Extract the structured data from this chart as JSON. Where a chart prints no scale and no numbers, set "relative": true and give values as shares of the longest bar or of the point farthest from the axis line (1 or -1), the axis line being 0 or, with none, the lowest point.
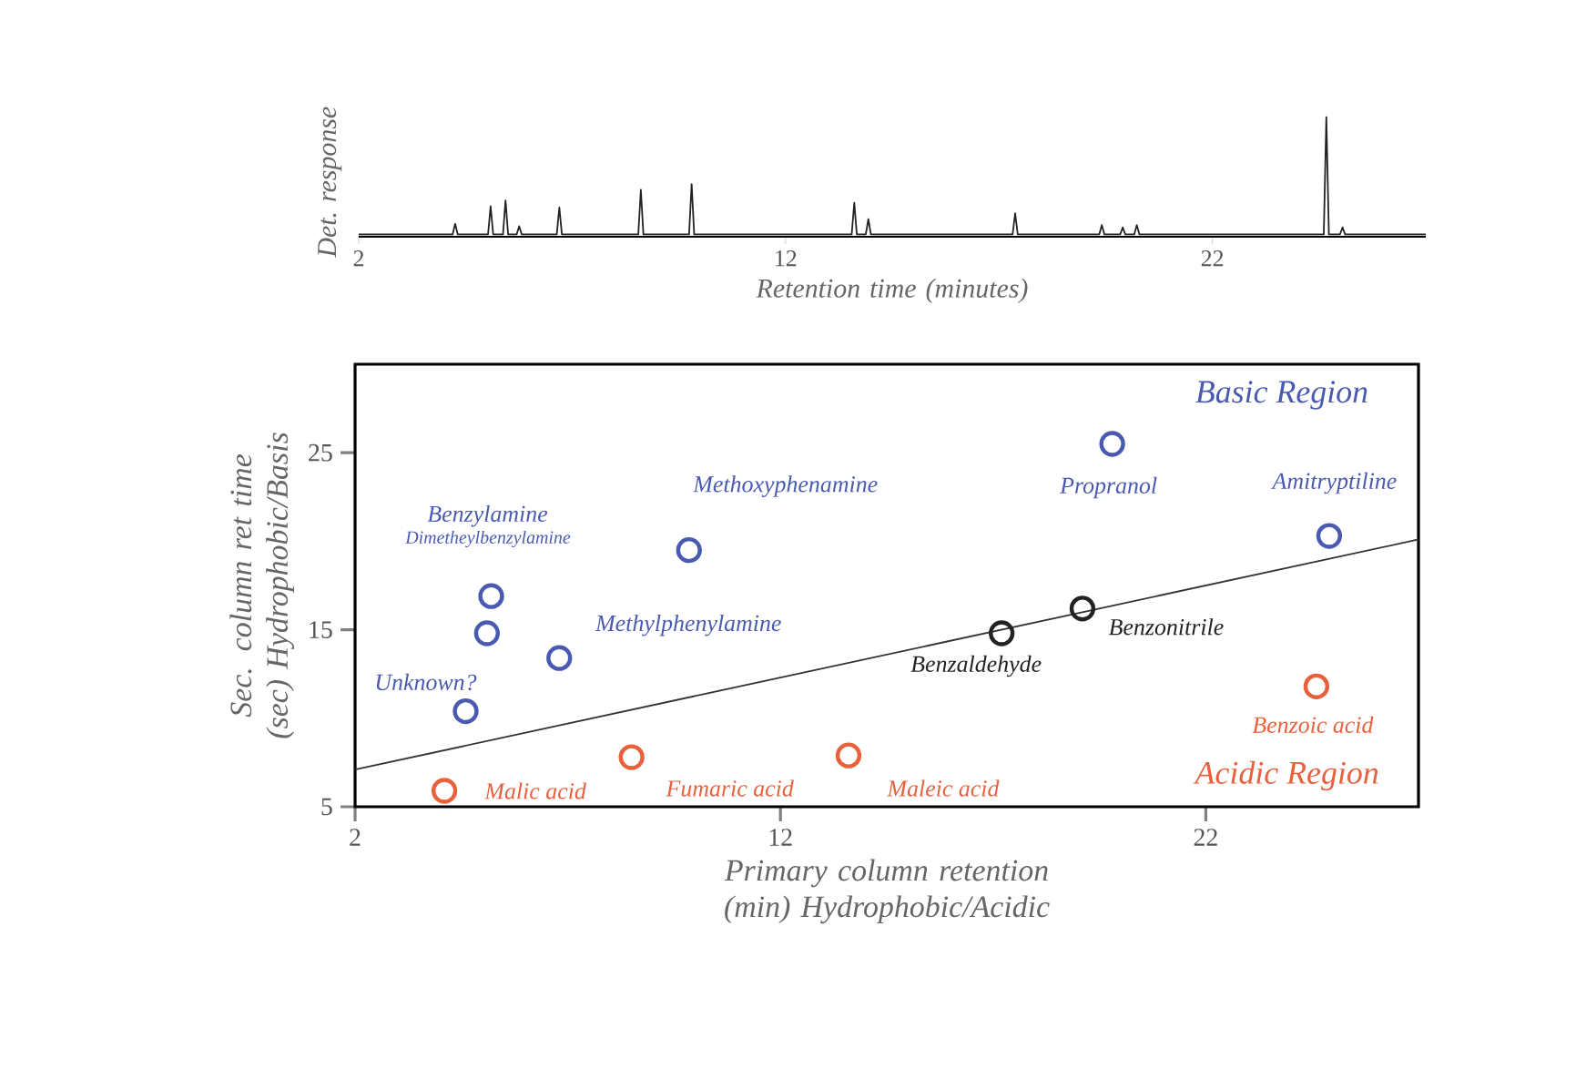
{
  "chart_data": [
    {
      "type": "line",
      "relative": true,
      "xlabel": "Retention time (minutes)",
      "ylabel": "Det. response",
      "xlim": [
        2,
        27
      ],
      "xticks": [
        2,
        12,
        22
      ],
      "tick_labels": "x",
      "series": [
        {
          "color": "#222222",
          "x": [
            2,
            4.2,
            4.26,
            4.32,
            5.03,
            5.09,
            5.15,
            5.38,
            5.44,
            5.5,
            5.7,
            5.76,
            5.82,
            6.64,
            6.7,
            6.76,
            8.55,
            8.61,
            8.67,
            9.74,
            9.8,
            9.86,
            13.55,
            13.61,
            13.67,
            13.88,
            13.94,
            14.0,
            17.32,
            17.38,
            17.44,
            19.35,
            19.41,
            19.47,
            19.84,
            19.9,
            19.96,
            20.17,
            20.23,
            20.29,
            24.61,
            24.67,
            24.73,
            24.99,
            25.05,
            25.11,
            27
          ],
          "values": [
            0,
            0,
            0.09,
            0,
            0,
            0.24,
            0,
            0,
            0.29,
            0,
            0,
            0.07,
            0,
            0,
            0.23,
            0,
            0,
            0.38,
            0,
            0,
            0.43,
            0,
            0,
            0.27,
            0,
            0,
            0.13,
            0,
            0,
            0.18,
            0,
            0,
            0.08,
            0,
            0,
            0.06,
            0,
            0,
            0.08,
            0,
            0,
            1,
            0,
            0,
            0.06,
            0,
            0
          ]
        }
      ]
    },
    {
      "type": "scatter",
      "xlabel": "Primary column retention (min) Hydrophobic/Acidic",
      "ylabel": "Sec. column ret time (sec) Hydrophobic/Basis",
      "xlim": [
        2,
        27
      ],
      "ylim": [
        5,
        30
      ],
      "xticks": [
        2,
        12,
        22
      ],
      "yticks": [
        5,
        15,
        25
      ],
      "marker": "circle",
      "series": [
        {
          "color": "#4a5ab0",
          "x": [
            5.2,
            5.1,
            4.6,
            6.8,
            9.85,
            19.8,
            24.9
          ],
          "values": [
            16.9,
            14.8,
            10.4,
            13.4,
            19.5,
            25.5,
            20.3
          ]
        },
        {
          "color": "#222222",
          "x": [
            17.2,
            19.1
          ],
          "values": [
            14.8,
            16.2
          ]
        },
        {
          "color": "#e8603c",
          "x": [
            4.1,
            8.5,
            13.6,
            24.6
          ],
          "values": [
            5.9,
            7.8,
            7.9,
            11.8
          ]
        },
        {
          "type": "line",
          "marker": "none",
          "color": "#333333",
          "x": [
            2,
            27
          ],
          "values": [
            7.1,
            20.1
          ]
        }
      ],
      "annotations": [
        {
          "text": "Benzylamine",
          "x": 5.2,
          "y": 16.9
        },
        "Dimetheylbenzylamine",
        {
          "text": "Unknown?",
          "x": 4.6,
          "y": 10.4
        },
        {
          "text": "Methylphenylamine",
          "x": 6.8,
          "y": 13.4
        },
        {
          "text": "Methoxyphenamine",
          "x": 9.85,
          "y": 19.5
        },
        {
          "text": "Propranol",
          "x": 19.8,
          "y": 25.5
        },
        {
          "text": "Amitryptiline",
          "x": 24.9,
          "y": 20.3
        },
        {
          "text": "Benzaldehyde",
          "x": 17.2,
          "y": 14.8
        },
        {
          "text": "Benzonitrile",
          "x": 19.1,
          "y": 16.2
        },
        {
          "text": "Malic acid",
          "x": 4.1,
          "y": 5.9
        },
        {
          "text": "Fumaric acid",
          "x": 8.5,
          "y": 7.8
        },
        {
          "text": "Maleic acid",
          "x": 13.6,
          "y": 7.9
        },
        {
          "text": "Benzoic acid",
          "x": 24.6,
          "y": 11.8
        },
        "Basic Region",
        "Acidic Region"
      ]
    }
  ]
}
